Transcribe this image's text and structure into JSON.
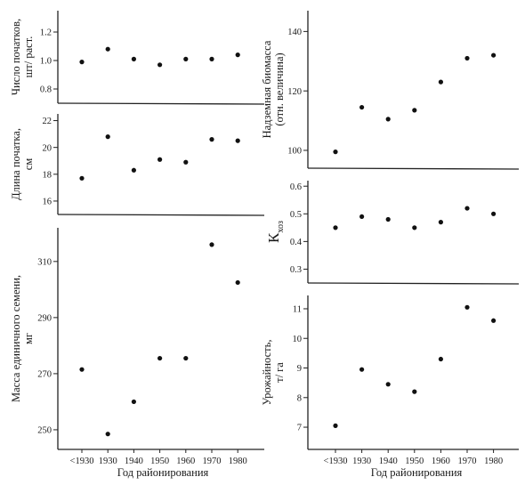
{
  "chart_data": [
    {
      "type": "scatter",
      "ylabel": [
        "Число початков,",
        "шт/ раст."
      ],
      "categories": [
        "<1930",
        "1930",
        "1940",
        "1950",
        "1960",
        "1970",
        "1980"
      ],
      "yticks": [
        "0.8",
        "1.0",
        "1.2"
      ],
      "ylim": [
        0.7,
        1.35
      ],
      "values": [
        0.99,
        1.08,
        1.01,
        0.97,
        1.01,
        1.01,
        1.04
      ]
    },
    {
      "type": "scatter",
      "ylabel": [
        "Длина початка,",
        "см"
      ],
      "categories": [
        "<1930",
        "1930",
        "1940",
        "1950",
        "1960",
        "1970",
        "1980"
      ],
      "yticks": [
        "16",
        "18",
        "20",
        "22"
      ],
      "ylim": [
        15,
        22.5
      ],
      "values": [
        17.7,
        20.8,
        18.3,
        19.1,
        18.9,
        20.6,
        20.5
      ]
    },
    {
      "type": "scatter",
      "ylabel": [
        "Масса единичного семени,",
        "мг"
      ],
      "categories": [
        "<1930",
        "1930",
        "1940",
        "1950",
        "1960",
        "1970",
        "1980"
      ],
      "yticks": [
        "250",
        "270",
        "290",
        "310"
      ],
      "ylim": [
        243,
        322
      ],
      "values": [
        271.5,
        248.5,
        260,
        275.5,
        275.5,
        316,
        302.5
      ]
    },
    {
      "type": "scatter",
      "ylabel": [
        "Надземная биомасса",
        "(отн. величина)"
      ],
      "categories": [
        "<1930",
        "1930",
        "1940",
        "1950",
        "1960",
        "1970",
        "1980"
      ],
      "yticks": [
        "100",
        "120",
        "140"
      ],
      "ylim": [
        94,
        147
      ],
      "values": [
        99.5,
        114.5,
        110.5,
        113.5,
        123,
        131,
        132
      ]
    },
    {
      "type": "scatter",
      "ylabel": [
        "К",
        "хоз"
      ],
      "categories": [
        "<1930",
        "1930",
        "1940",
        "1950",
        "1960",
        "1970",
        "1980"
      ],
      "yticks": [
        "0.3",
        "0.4",
        "0.5",
        "0.6"
      ],
      "ylim": [
        0.25,
        0.62
      ],
      "values": [
        0.45,
        0.49,
        0.48,
        0.45,
        0.47,
        0.52,
        0.5
      ]
    },
    {
      "type": "scatter",
      "ylabel": [
        "Урожайность,",
        "т/ га"
      ],
      "categories": [
        "<1930",
        "1930",
        "1940",
        "1950",
        "1960",
        "1970",
        "1980"
      ],
      "yticks": [
        "7",
        "8",
        "9",
        "10",
        "11"
      ],
      "ylim": [
        6.25,
        11.45
      ],
      "values": [
        7.05,
        8.95,
        8.45,
        8.2,
        9.3,
        11.05,
        10.6
      ]
    }
  ],
  "xlabel_left": "Год районирования",
  "xlabel_right": "Год районирования"
}
